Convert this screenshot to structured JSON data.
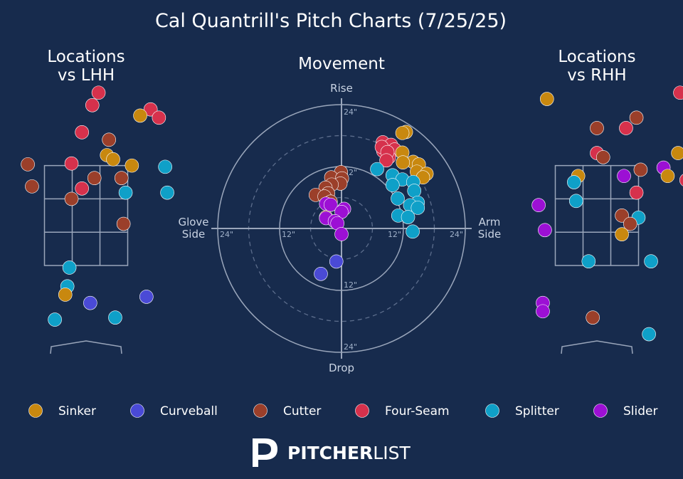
{
  "title": "Cal Quantrill's Pitch Charts (7/25/25)",
  "colors": {
    "background": "#172b4d",
    "Sinker": "#c8880f",
    "Curveball": "#4a4ad6",
    "Cutter": "#9b3f2a",
    "Four-Seam": "#d6314c",
    "Splitter": "#0fa0c8",
    "Slider": "#9c10d4"
  },
  "legend": [
    "Sinker",
    "Curveball",
    "Cutter",
    "Four-Seam",
    "Splitter",
    "Slider"
  ],
  "brand": {
    "strong": "PITCHER",
    "light": "LIST"
  },
  "chart_data": [
    {
      "type": "scatter",
      "title": "Locations\nvs LHH",
      "points": [
        {
          "pitch": "Four-Seam",
          "x": 0.3,
          "y": 4.5
        },
        {
          "pitch": "Four-Seam",
          "x": 0.15,
          "y": 4.2
        },
        {
          "pitch": "Four-Seam",
          "x": 1.55,
          "y": 4.1
        },
        {
          "pitch": "Sinker",
          "x": 1.3,
          "y": 3.95
        },
        {
          "pitch": "Four-Seam",
          "x": 1.75,
          "y": 3.9
        },
        {
          "pitch": "Four-Seam",
          "x": -0.1,
          "y": 3.55
        },
        {
          "pitch": "Cutter",
          "x": 0.55,
          "y": 3.37
        },
        {
          "pitch": "Sinker",
          "x": 0.5,
          "y": 3.0
        },
        {
          "pitch": "Sinker",
          "x": 0.65,
          "y": 2.9
        },
        {
          "pitch": "Four-Seam",
          "x": -0.35,
          "y": 2.8
        },
        {
          "pitch": "Cutter",
          "x": -1.4,
          "y": 2.78
        },
        {
          "pitch": "Sinker",
          "x": 1.1,
          "y": 2.75
        },
        {
          "pitch": "Splitter",
          "x": 1.9,
          "y": 2.72
        },
        {
          "pitch": "Cutter",
          "x": 0.2,
          "y": 2.45
        },
        {
          "pitch": "Cutter",
          "x": 0.85,
          "y": 2.45
        },
        {
          "pitch": "Cutter",
          "x": -1.3,
          "y": 2.25
        },
        {
          "pitch": "Four-Seam",
          "x": -0.1,
          "y": 2.2
        },
        {
          "pitch": "Splitter",
          "x": 0.95,
          "y": 2.1
        },
        {
          "pitch": "Splitter",
          "x": 1.95,
          "y": 2.1
        },
        {
          "pitch": "Four-Seam",
          "x": -2.95,
          "y": 2.08
        },
        {
          "pitch": "Cutter",
          "x": -0.35,
          "y": 1.95
        },
        {
          "pitch": "Cutter",
          "x": 0.9,
          "y": 1.35
        },
        {
          "pitch": "Splitter",
          "x": -0.4,
          "y": 0.3
        },
        {
          "pitch": "Splitter",
          "x": -0.45,
          "y": -0.15
        },
        {
          "pitch": "Sinker",
          "x": -0.5,
          "y": -0.35
        },
        {
          "pitch": "Curveball",
          "x": 0.1,
          "y": -0.55
        },
        {
          "pitch": "Curveball",
          "x": 1.45,
          "y": -0.4
        },
        {
          "pitch": "Splitter",
          "x": -0.75,
          "y": -0.95
        },
        {
          "pitch": "Splitter",
          "x": 0.7,
          "y": -0.9
        }
      ]
    },
    {
      "type": "scatter",
      "title": "Movement",
      "x_label_left": "Glove\nSide",
      "x_label_right": "Arm\nSide",
      "y_label_top": "Rise",
      "y_label_bottom": "Drop",
      "rings": [
        12,
        24
      ],
      "dashed_rings": [
        6,
        18
      ],
      "tick_labels": [
        "12\"",
        "24\""
      ],
      "points": [
        {
          "pitch": "Sinker",
          "x": 12.5,
          "y": 18.7
        },
        {
          "pitch": "Sinker",
          "x": 11.8,
          "y": 18.5
        },
        {
          "pitch": "Four-Seam",
          "x": 8.0,
          "y": 16.7
        },
        {
          "pitch": "Four-Seam",
          "x": 9.6,
          "y": 16.2
        },
        {
          "pitch": "Four-Seam",
          "x": 10.3,
          "y": 15.3
        },
        {
          "pitch": "Four-Seam",
          "x": 8.1,
          "y": 15.0
        },
        {
          "pitch": "Four-Seam",
          "x": 7.8,
          "y": 15.8
        },
        {
          "pitch": "Four-Seam",
          "x": 9.2,
          "y": 13.8
        },
        {
          "pitch": "Four-Seam",
          "x": 8.9,
          "y": 14.8
        },
        {
          "pitch": "Four-Seam",
          "x": 8.7,
          "y": 13.2
        },
        {
          "pitch": "Sinker",
          "x": 11.8,
          "y": 14.7
        },
        {
          "pitch": "Sinker",
          "x": 13.9,
          "y": 12.9
        },
        {
          "pitch": "Sinker",
          "x": 15.0,
          "y": 12.4
        },
        {
          "pitch": "Sinker",
          "x": 14.6,
          "y": 11.0
        },
        {
          "pitch": "Sinker",
          "x": 16.5,
          "y": 10.6
        },
        {
          "pitch": "Sinker",
          "x": 15.8,
          "y": 9.9
        },
        {
          "pitch": "Sinker",
          "x": 11.9,
          "y": 12.8
        },
        {
          "pitch": "Splitter",
          "x": 6.9,
          "y": 11.5
        },
        {
          "pitch": "Splitter",
          "x": 9.9,
          "y": 10.3
        },
        {
          "pitch": "Splitter",
          "x": 11.8,
          "y": 9.5
        },
        {
          "pitch": "Splitter",
          "x": 13.9,
          "y": 9.0
        },
        {
          "pitch": "Splitter",
          "x": 9.9,
          "y": 8.4
        },
        {
          "pitch": "Splitter",
          "x": 14.1,
          "y": 7.3
        },
        {
          "pitch": "Splitter",
          "x": 10.9,
          "y": 5.8
        },
        {
          "pitch": "Splitter",
          "x": 14.8,
          "y": 5.0
        },
        {
          "pitch": "Splitter",
          "x": 13.3,
          "y": 4.5
        },
        {
          "pitch": "Splitter",
          "x": 14.8,
          "y": 4.0
        },
        {
          "pitch": "Splitter",
          "x": 11.0,
          "y": 2.5
        },
        {
          "pitch": "Splitter",
          "x": 12.9,
          "y": 2.2
        },
        {
          "pitch": "Splitter",
          "x": 13.8,
          "y": -0.6
        },
        {
          "pitch": "Cutter",
          "x": -0.1,
          "y": 10.9
        },
        {
          "pitch": "Cutter",
          "x": -2.0,
          "y": 9.9
        },
        {
          "pitch": "Cutter",
          "x": 0.1,
          "y": 9.7
        },
        {
          "pitch": "Cutter",
          "x": -0.2,
          "y": 8.7
        },
        {
          "pitch": "Cutter",
          "x": -1.9,
          "y": 8.5
        },
        {
          "pitch": "Cutter",
          "x": -3.1,
          "y": 7.9
        },
        {
          "pitch": "Cutter",
          "x": -2.6,
          "y": 6.8
        },
        {
          "pitch": "Cutter",
          "x": -5.0,
          "y": 6.5
        },
        {
          "pitch": "Cutter",
          "x": -3.3,
          "y": 6.2
        },
        {
          "pitch": "Cutter",
          "x": -2.1,
          "y": 5.2
        },
        {
          "pitch": "Cutter",
          "x": -3.0,
          "y": 2.2
        },
        {
          "pitch": "Slider",
          "x": -3.0,
          "y": 4.8
        },
        {
          "pitch": "Slider",
          "x": -2.1,
          "y": 4.6
        },
        {
          "pitch": "Slider",
          "x": 0.5,
          "y": 3.8
        },
        {
          "pitch": "Slider",
          "x": 0.0,
          "y": 3.2
        },
        {
          "pitch": "Slider",
          "x": -3.0,
          "y": 2.0
        },
        {
          "pitch": "Slider",
          "x": -1.3,
          "y": 1.4
        },
        {
          "pitch": "Slider",
          "x": -0.8,
          "y": 1.0
        },
        {
          "pitch": "Slider",
          "x": 0.0,
          "y": -1.1
        },
        {
          "pitch": "Curveball",
          "x": -1.0,
          "y": -6.4
        },
        {
          "pitch": "Curveball",
          "x": -4.0,
          "y": -8.8
        }
      ]
    },
    {
      "type": "scatter",
      "title": "Locations\nvs RHH",
      "points": [
        {
          "pitch": "Four-Seam",
          "x": 2.0,
          "y": 4.5
        },
        {
          "pitch": "Sinker",
          "x": -1.2,
          "y": 4.35
        },
        {
          "pitch": "Cutter",
          "x": 0.95,
          "y": 3.9
        },
        {
          "pitch": "Four-Seam",
          "x": 0.7,
          "y": 3.65
        },
        {
          "pitch": "Cutter",
          "x": 0.0,
          "y": 3.65
        },
        {
          "pitch": "Cutter",
          "x": 2.3,
          "y": 3.3
        },
        {
          "pitch": "Splitter",
          "x": 3.35,
          "y": 3.15
        },
        {
          "pitch": "Four-Seam",
          "x": 0.0,
          "y": 3.05
        },
        {
          "pitch": "Cutter",
          "x": 0.15,
          "y": 2.95
        },
        {
          "pitch": "Sinker",
          "x": 1.95,
          "y": 3.05
        },
        {
          "pitch": "Sinker",
          "x": 3.05,
          "y": 2.8
        },
        {
          "pitch": "Slider",
          "x": 1.6,
          "y": 2.7
        },
        {
          "pitch": "Cutter",
          "x": 1.05,
          "y": 2.65
        },
        {
          "pitch": "Slider",
          "x": 0.65,
          "y": 2.5
        },
        {
          "pitch": "Sinker",
          "x": -0.45,
          "y": 2.5
        },
        {
          "pitch": "Sinker",
          "x": 1.7,
          "y": 2.5
        },
        {
          "pitch": "Four-Seam",
          "x": 2.15,
          "y": 2.4
        },
        {
          "pitch": "Splitter",
          "x": -0.55,
          "y": 2.35
        },
        {
          "pitch": "Four-Seam",
          "x": 0.95,
          "y": 2.1
        },
        {
          "pitch": "Splitter",
          "x": -0.5,
          "y": 1.9
        },
        {
          "pitch": "Slider",
          "x": -1.4,
          "y": 1.8
        },
        {
          "pitch": "Cutter",
          "x": 0.6,
          "y": 1.55
        },
        {
          "pitch": "Splitter",
          "x": 1.0,
          "y": 1.5
        },
        {
          "pitch": "Cutter",
          "x": 0.8,
          "y": 1.35
        },
        {
          "pitch": "Slider",
          "x": -1.25,
          "y": 1.2
        },
        {
          "pitch": "Sinker",
          "x": 0.6,
          "y": 1.1
        },
        {
          "pitch": "Splitter",
          "x": -0.2,
          "y": 0.45
        },
        {
          "pitch": "Splitter",
          "x": 1.3,
          "y": 0.45
        },
        {
          "pitch": "Slider",
          "x": -1.3,
          "y": -0.55
        },
        {
          "pitch": "Slider",
          "x": -1.3,
          "y": -0.75
        },
        {
          "pitch": "Cutter",
          "x": -0.1,
          "y": -0.9
        },
        {
          "pitch": "Splitter",
          "x": 1.25,
          "y": -1.3
        }
      ]
    }
  ]
}
